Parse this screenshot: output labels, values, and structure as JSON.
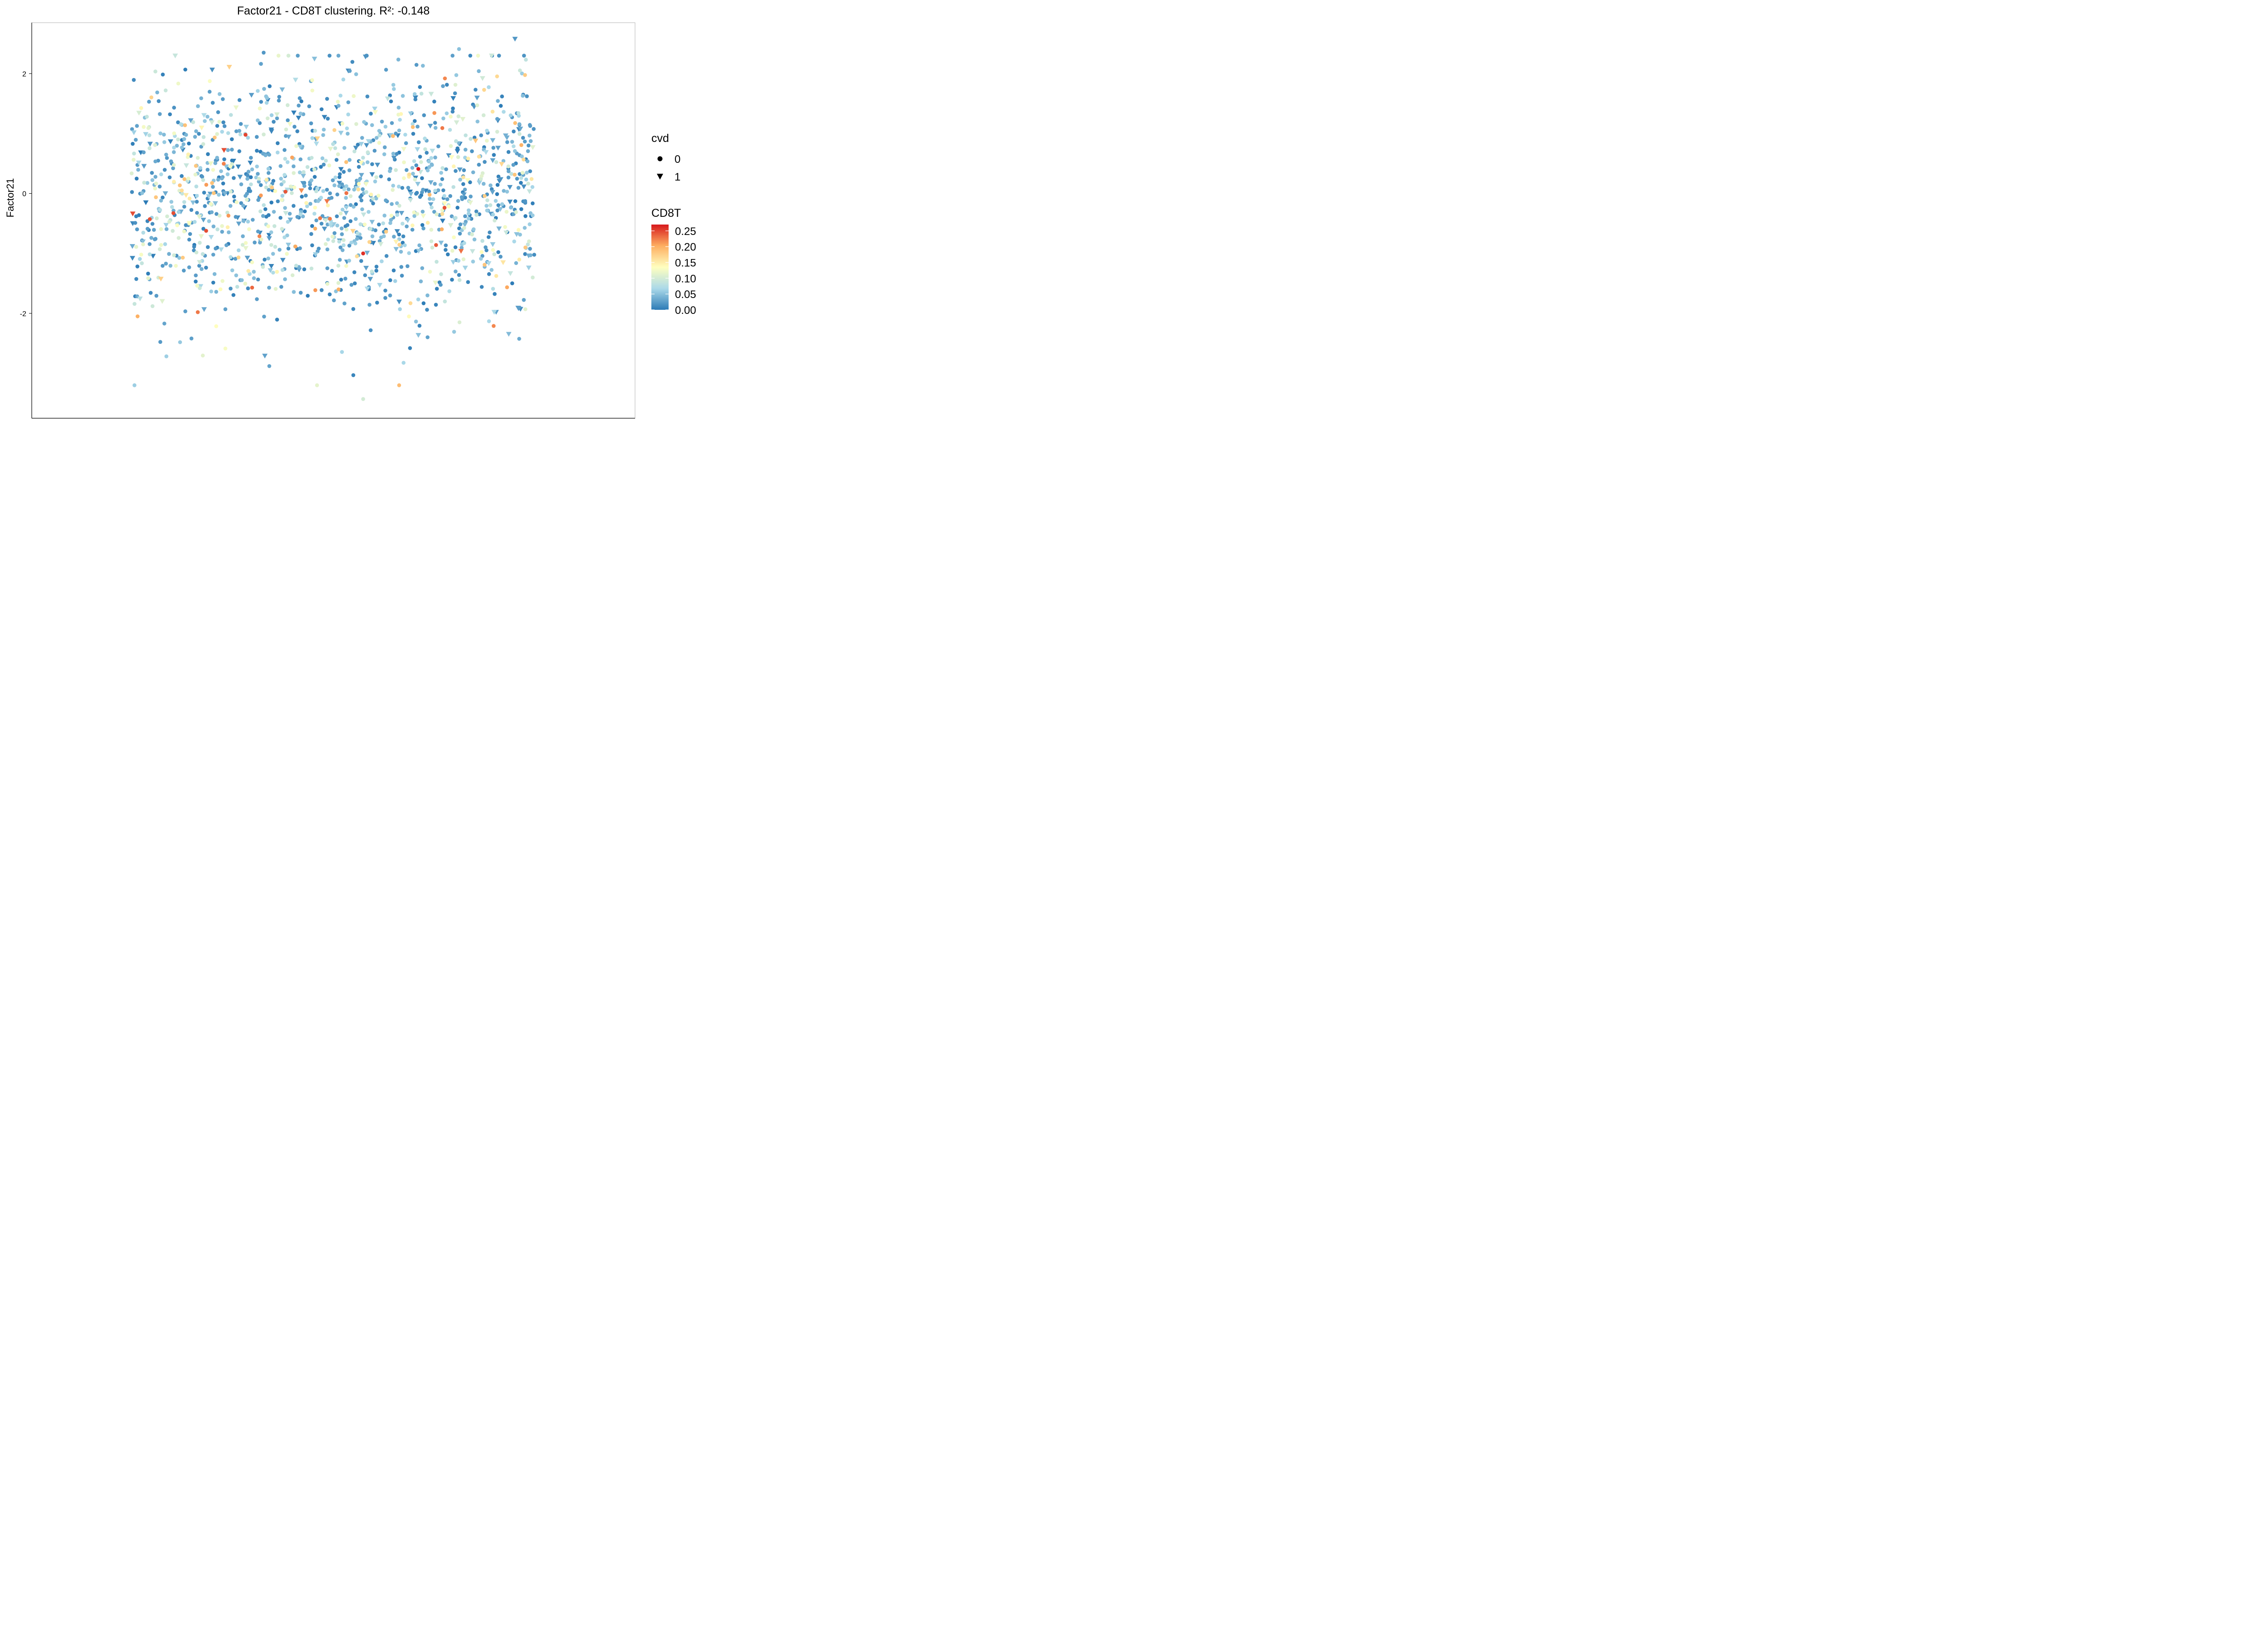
{
  "chart_data": {
    "type": "scatter",
    "title": "Factor21 - CD8T clustering. R²: -0.148",
    "xlabel": "",
    "ylabel": "Factor21",
    "ylim": [
      -3.75,
      2.85
    ],
    "y_ticks": [
      -2,
      0,
      2
    ],
    "y_tick_labels": [
      "-2",
      "0",
      "2"
    ],
    "x_ticks": [],
    "grid": false,
    "legend_placement": "right",
    "shape_legend": {
      "title": "cvd",
      "entries": [
        {
          "label": "0",
          "shape": "circle"
        },
        {
          "label": "1",
          "shape": "triangle-down"
        }
      ]
    },
    "color_legend": {
      "title": "CD8T",
      "range": [
        0,
        0.27
      ],
      "tick_values": [
        0.25,
        0.2,
        0.15,
        0.1,
        0.05,
        0.0
      ],
      "tick_labels": [
        "0.25",
        "0.20",
        "0.15",
        "0.10",
        "0.05",
        "0.00"
      ],
      "colors": [
        "#2c7bb6",
        "#abd9e9",
        "#ffffbf",
        "#fdae61",
        "#d7191c"
      ]
    },
    "points_sampled": {
      "n": 1500,
      "x_range": [
        0,
        1
      ],
      "y_mean": 0.0,
      "y_sd": 1.0,
      "cvd1_fraction": 0.15
    },
    "notable_points": [
      {
        "x": 0.952,
        "y": 2.58,
        "cvd": 1,
        "cd8t": 0.02
      },
      {
        "x": 0.328,
        "y": 2.35,
        "cvd": 0,
        "cd8t": 0.02
      },
      {
        "x": 0.813,
        "y": 2.41,
        "cvd": 0,
        "cd8t": 0.05
      },
      {
        "x": 0.342,
        "y": -2.88,
        "cvd": 0,
        "cd8t": 0.03
      },
      {
        "x": 0.575,
        "y": -3.43,
        "cvd": 0,
        "cd8t": 0.1
      },
      {
        "x": 0.712,
        "y": 0.41,
        "cvd": 0,
        "cd8t": 0.27
      },
      {
        "x": 0.575,
        "y": -1.0,
        "cvd": 0,
        "cd8t": 0.26
      },
      {
        "x": 0.283,
        "y": 0.98,
        "cvd": 0,
        "cd8t": 0.25
      },
      {
        "x": 0.756,
        "y": -0.86,
        "cvd": 0,
        "cd8t": 0.24
      },
      {
        "x": 0.899,
        "y": -2.21,
        "cvd": 0,
        "cd8t": 0.22
      },
      {
        "x": 0.015,
        "y": -2.05,
        "cvd": 0,
        "cd8t": 0.2
      },
      {
        "x": 0.778,
        "y": 1.92,
        "cvd": 0,
        "cd8t": 0.22
      },
      {
        "x": 0.514,
        "y": -1.6,
        "cvd": 0,
        "cd8t": 0.2
      },
      {
        "x": 0.818,
        "y": -0.96,
        "cvd": 1,
        "cd8t": 0.23
      },
      {
        "x": 0.74,
        "y": -0.02,
        "cvd": 0,
        "cd8t": 0.19
      }
    ]
  }
}
